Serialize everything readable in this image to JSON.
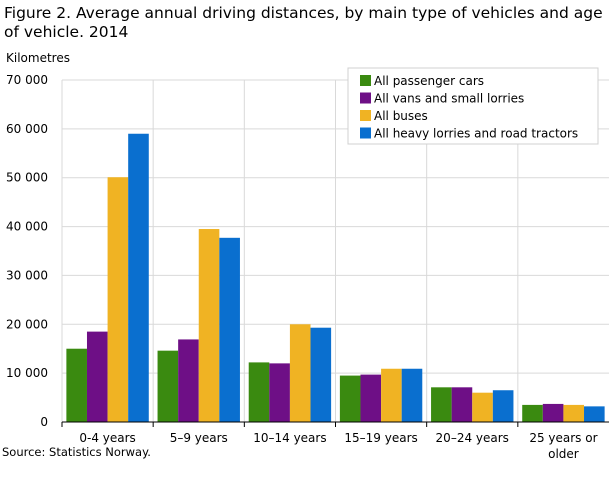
{
  "title": "Figure 2. Average annual driving distances, by main type of vehicles and age of vehicle. 2014",
  "source": "Source: Statistics Norway.",
  "chart_data": {
    "type": "bar",
    "title": "Figure 2. Average annual driving distances, by main type of vehicles and age of vehicle. 2014",
    "ylabel": "Kilometres",
    "xlabel": "",
    "ylim": [
      0,
      70000
    ],
    "yticks": [
      0,
      10000,
      20000,
      30000,
      40000,
      50000,
      60000,
      70000
    ],
    "ytick_labels": [
      "0",
      "10 000",
      "20 000",
      "30 000",
      "40 000",
      "50 000",
      "60 000",
      "70 000"
    ],
    "grid": true,
    "legend_position": "top-right",
    "categories": [
      [
        "0-4 years"
      ],
      [
        "5–9 years"
      ],
      [
        "10–14 years"
      ],
      [
        "15–19 years"
      ],
      [
        "20–24 years"
      ],
      [
        "25 years or",
        "older"
      ]
    ],
    "series": [
      {
        "name": "All passenger cars",
        "color": "#3a8a10",
        "values": [
          15000,
          14600,
          12200,
          9500,
          7100,
          3500
        ]
      },
      {
        "name": "All vans and small lorries",
        "color": "#6e0f86",
        "values": [
          18500,
          16900,
          12000,
          9700,
          7100,
          3700
        ]
      },
      {
        "name": "All buses",
        "color": "#f0b323",
        "values": [
          50100,
          39500,
          20000,
          10900,
          6000,
          3500
        ]
      },
      {
        "name": "All heavy lorries and road tractors",
        "color": "#0a6fcf",
        "values": [
          59000,
          37700,
          19300,
          10900,
          6500,
          3200
        ]
      }
    ]
  }
}
